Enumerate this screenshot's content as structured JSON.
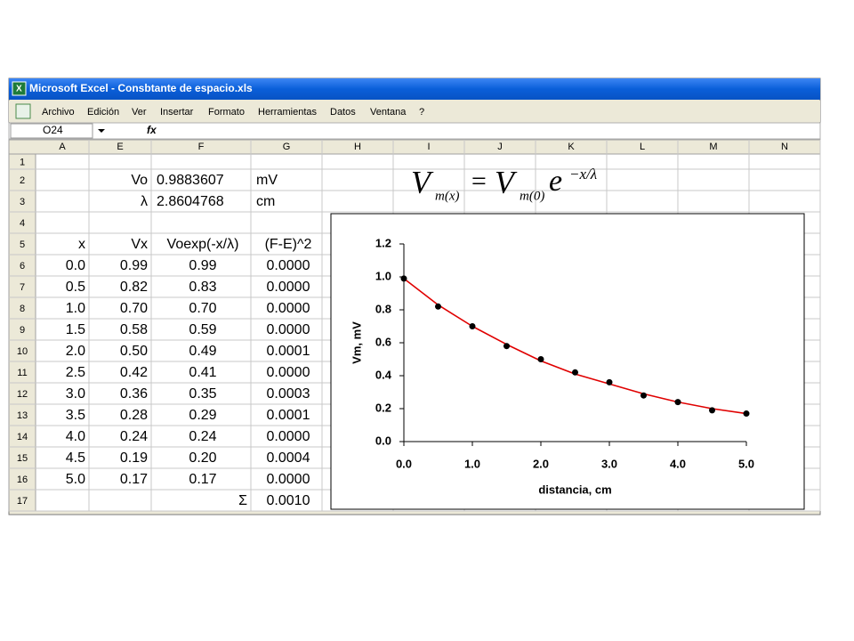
{
  "window": {
    "title": "Microsoft Excel - Consbtante de espacio.xls",
    "menu": [
      "Archivo",
      "Edición",
      "Ver",
      "Insertar",
      "Formato",
      "Herramientas",
      "Datos",
      "Ventana",
      "?"
    ],
    "name_box": "O24",
    "fx": "fx"
  },
  "sheet": {
    "columns": [
      "A",
      "E",
      "F",
      "G",
      "H",
      "I",
      "J",
      "K",
      "L",
      "M",
      "N"
    ],
    "rows": [
      {
        "row": "1"
      },
      {
        "row": "2",
        "E": "Vo",
        "F": "0.9883607",
        "G": "mV"
      },
      {
        "row": "3",
        "E": "λ",
        "F": "2.8604768",
        "G": "cm"
      },
      {
        "row": "4"
      },
      {
        "row": "5",
        "A": "x",
        "E": "Vx",
        "F": "Voexp(-x/λ)",
        "G": "(F-E)^2"
      },
      {
        "row": "6",
        "A": "0.0",
        "E": "0.99",
        "F": "0.99",
        "G": "0.0000"
      },
      {
        "row": "7",
        "A": "0.5",
        "E": "0.82",
        "F": "0.83",
        "G": "0.0000"
      },
      {
        "row": "8",
        "A": "1.0",
        "E": "0.70",
        "F": "0.70",
        "G": "0.0000"
      },
      {
        "row": "9",
        "A": "1.5",
        "E": "0.58",
        "F": "0.59",
        "G": "0.0000"
      },
      {
        "row": "10",
        "A": "2.0",
        "E": "0.50",
        "F": "0.49",
        "G": "0.0001"
      },
      {
        "row": "11",
        "A": "2.5",
        "E": "0.42",
        "F": "0.41",
        "G": "0.0000"
      },
      {
        "row": "12",
        "A": "3.0",
        "E": "0.36",
        "F": "0.35",
        "G": "0.0003"
      },
      {
        "row": "13",
        "A": "3.5",
        "E": "0.28",
        "F": "0.29",
        "G": "0.0001"
      },
      {
        "row": "14",
        "A": "4.0",
        "E": "0.24",
        "F": "0.24",
        "G": "0.0000"
      },
      {
        "row": "15",
        "A": "4.5",
        "E": "0.19",
        "F": "0.20",
        "G": "0.0004"
      },
      {
        "row": "16",
        "A": "5.0",
        "E": "0.17",
        "F": "0.17",
        "G": "0.0000"
      },
      {
        "row": "17",
        "F": "Σ",
        "G": "0.0010"
      }
    ]
  },
  "formula": {
    "lhs": "V",
    "lhs_sub": "m(x)",
    "eq": "=",
    "rhs": "V",
    "rhs_sub": "m(0)",
    "base": "e",
    "exp": "−x/λ"
  },
  "chart_data": {
    "type": "scatter",
    "x_label": "distancia, cm",
    "y_label": "Vm, mV",
    "x": [
      0.0,
      0.5,
      1.0,
      1.5,
      2.0,
      2.5,
      3.0,
      3.5,
      4.0,
      4.5,
      5.0
    ],
    "series": [
      {
        "color": "#000000",
        "mode": "markers",
        "values": [
          0.99,
          0.82,
          0.7,
          0.58,
          0.5,
          0.42,
          0.36,
          0.28,
          0.24,
          0.19,
          0.17
        ]
      },
      {
        "color": "#e00000",
        "mode": "line",
        "values": [
          0.99,
          0.83,
          0.7,
          0.59,
          0.49,
          0.41,
          0.35,
          0.29,
          0.24,
          0.2,
          0.17
        ]
      }
    ],
    "xlim": [
      0,
      5
    ],
    "xticks": [
      {
        "value": 0,
        "label": "0.0"
      },
      {
        "value": 1,
        "label": "1.0"
      },
      {
        "value": 2,
        "label": "2.0"
      },
      {
        "value": 3,
        "label": "3.0"
      },
      {
        "value": 4,
        "label": "4.0"
      },
      {
        "value": 5,
        "label": "5.0"
      }
    ],
    "ylim": [
      0,
      1.2
    ],
    "yticks": [
      {
        "value": 0,
        "label": "0.0"
      },
      {
        "value": 0.2,
        "label": "0.2"
      },
      {
        "value": 0.4,
        "label": "0.4"
      },
      {
        "value": 0.6,
        "label": "0.6"
      },
      {
        "value": 0.8,
        "label": "0.8"
      },
      {
        "value": 1,
        "label": "1.0"
      },
      {
        "value": 1.2,
        "label": "1.2"
      }
    ]
  }
}
